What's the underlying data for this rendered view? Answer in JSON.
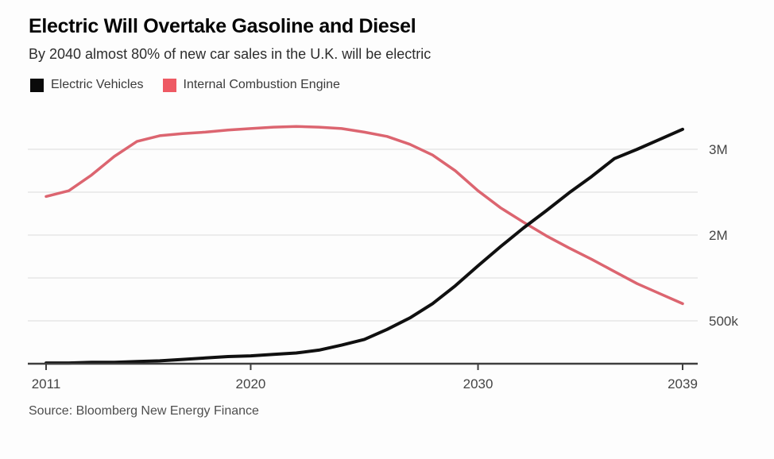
{
  "header": {
    "title": "Electric Will Overtake Gasoline and Diesel",
    "subtitle": "By 2040 almost 80% of new car sales in the U.K. will be electric"
  },
  "legend": [
    {
      "label": "Electric Vehicles",
      "color": "#0a0a0a"
    },
    {
      "label": "Internal Combustion Engine",
      "color": "#ee5a64"
    }
  ],
  "source": "Source: Bloomberg New Energy Finance",
  "chart_data": {
    "type": "line",
    "title": "Electric Will Overtake Gasoline and Diesel",
    "subtitle": "By 2040 almost 80% of new car sales in the U.K. will be electric",
    "units": "million new car sales per year, U.K.",
    "x": [
      2011,
      2012,
      2013,
      2014,
      2015,
      2016,
      2017,
      2018,
      2019,
      2020,
      2021,
      2022,
      2023,
      2024,
      2025,
      2026,
      2027,
      2028,
      2029,
      2030,
      2031,
      2032,
      2033,
      2034,
      2035,
      2036,
      2037,
      2038,
      2039
    ],
    "series": [
      {
        "name": "Electric Vehicles",
        "color": "#101010",
        "values": [
          0.01,
          0.01,
          0.02,
          0.02,
          0.03,
          0.04,
          0.06,
          0.08,
          0.1,
          0.11,
          0.13,
          0.15,
          0.19,
          0.26,
          0.34,
          0.48,
          0.64,
          0.84,
          1.09,
          1.37,
          1.64,
          1.9,
          2.14,
          2.39,
          2.62,
          2.87,
          3.0,
          3.14,
          3.28
        ]
      },
      {
        "name": "Internal Combustion Engine",
        "color": "#dc6570",
        "values": [
          2.34,
          2.42,
          2.64,
          2.9,
          3.11,
          3.19,
          3.22,
          3.24,
          3.27,
          3.29,
          3.31,
          3.32,
          3.31,
          3.29,
          3.24,
          3.18,
          3.07,
          2.92,
          2.7,
          2.42,
          2.18,
          1.98,
          1.79,
          1.62,
          1.46,
          1.29,
          1.12,
          0.98,
          0.84
        ]
      }
    ],
    "x_ticks": [
      "2011",
      "2020",
      "2030",
      "2039"
    ],
    "y_ticks": [
      {
        "label": "3M",
        "value": 3.0
      },
      {
        "label": "2M",
        "value": 2.0
      },
      {
        "label": "500k",
        "value": 0.5
      }
    ],
    "xlim": [
      2011,
      2039
    ],
    "ylim": [
      0,
      3.6
    ],
    "grid": "horizontal",
    "legend_position": "top-left",
    "crossover_note": "EV line crosses above ICE line between 2032 and 2033 at about 2M"
  }
}
